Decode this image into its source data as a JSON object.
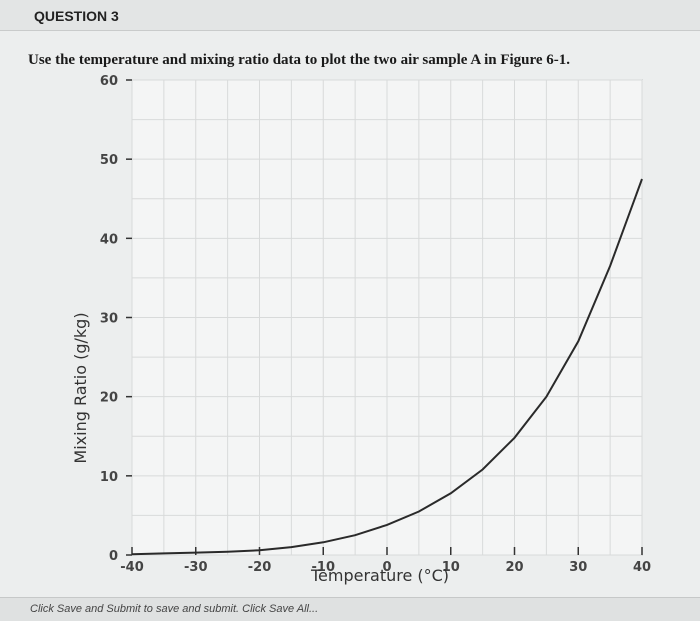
{
  "header": {
    "question_label": "QUESTION 3"
  },
  "question": {
    "text": "Use the temperature and mixing ratio data to plot the two air sample A in Figure 6-1."
  },
  "footer": {
    "text": "Click Save and Submit to save and submit. Click Save All..."
  },
  "colors": {
    "curve": "#2a2a2a",
    "grid": "#d8dada",
    "axis": "#333333"
  },
  "chart_data": {
    "type": "line",
    "title": "",
    "xlabel": "Temperature (°C)",
    "ylabel": "Mixing Ratio (g/kg)",
    "xlim": [
      -40,
      40
    ],
    "ylim": [
      0,
      60
    ],
    "xticks": [
      -40,
      -30,
      -20,
      -10,
      0,
      10,
      20,
      30,
      40
    ],
    "yticks": [
      0,
      10,
      20,
      30,
      40,
      50,
      60
    ],
    "grid": true,
    "series": [
      {
        "x": [
          -40,
          -35,
          -30,
          -25,
          -20,
          -15,
          -10,
          -5,
          0,
          5,
          10,
          15,
          20,
          25,
          30,
          35,
          40
        ],
        "y": [
          0.1,
          0.2,
          0.3,
          0.4,
          0.6,
          1.0,
          1.6,
          2.5,
          3.8,
          5.5,
          7.8,
          10.8,
          14.8,
          20.0,
          27.0,
          36.5,
          47.5
        ]
      }
    ]
  }
}
